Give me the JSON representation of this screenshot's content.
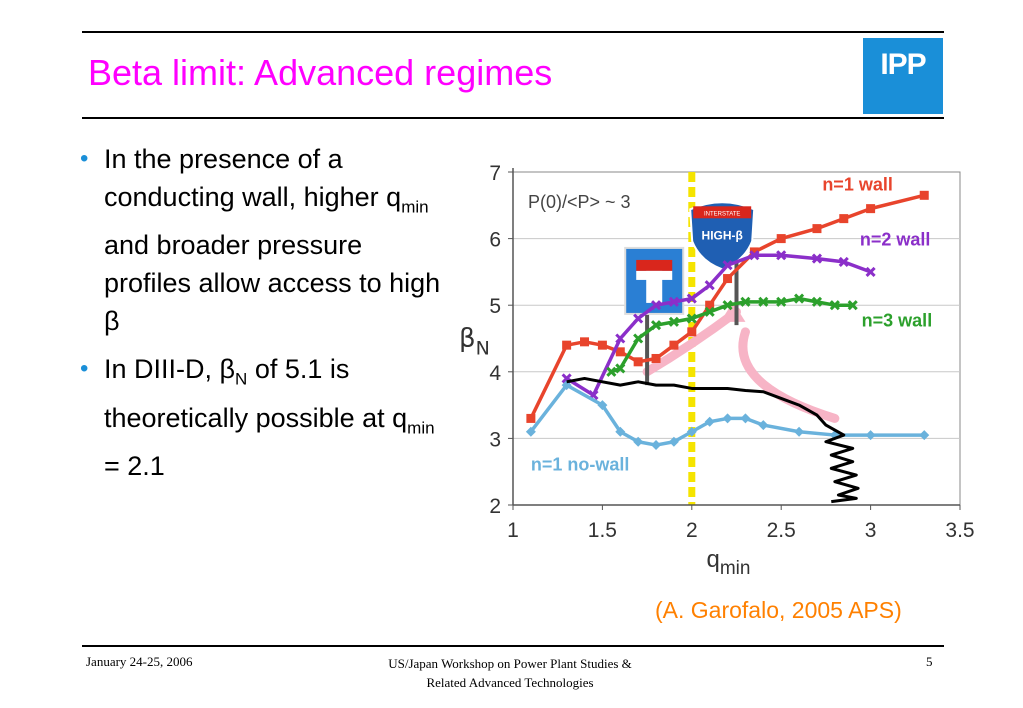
{
  "slide": {
    "title": "Beta limit: Advanced regimes",
    "logo_text": "IPP",
    "bullets": [
      {
        "parts": [
          "In the presence of a conducting wall, higher q",
          "min",
          " and broader pressure profiles allow access to high β"
        ]
      },
      {
        "parts": [
          "In DIII-D, β",
          "N",
          " of 5.1 is theoretically possible at q",
          "min",
          " = 2.1"
        ]
      }
    ],
    "credit": "(A. Garofalo, 2005 APS)",
    "footer": {
      "date": "January 24-25, 2006",
      "event_line1": "US/Japan Workshop on Power Plant Studies &",
      "event_line2": "Related Advanced Technologies",
      "page": "5"
    },
    "colors": {
      "title": "#ff00ff",
      "bullet": "#1a8fd8",
      "credit": "#ff8000",
      "logo_bg": "#1a8fd8"
    }
  },
  "chart_data": {
    "type": "line",
    "xlabel": "q",
    "xlabel_sub": "min",
    "ylabel": "β",
    "ylabel_sub": "N",
    "xlim": [
      1,
      3.5
    ],
    "ylim": [
      2,
      7
    ],
    "xticks": [
      "1",
      "1.5",
      "2",
      "2.5",
      "3",
      "3.5"
    ],
    "yticks": [
      "2",
      "3",
      "4",
      "5",
      "6",
      "7"
    ],
    "grid": "horizontal",
    "annotations": [
      "P(0)/<P> ~ 3"
    ],
    "sign_labels": [
      "INTERSTATE",
      "HIGH-β"
    ],
    "vertical_marker": {
      "x": 2,
      "color": "#f5e400"
    },
    "series": [
      {
        "name": "n=1 wall",
        "color": "#e8442c",
        "marker": "square",
        "x": [
          1.1,
          1.3,
          1.4,
          1.5,
          1.6,
          1.7,
          1.8,
          1.9,
          2.0,
          2.1,
          2.2,
          2.35,
          2.5,
          2.7,
          2.85,
          3.0,
          3.3
        ],
        "y": [
          3.3,
          4.4,
          4.45,
          4.4,
          4.3,
          4.15,
          4.2,
          4.4,
          4.6,
          5.0,
          5.4,
          5.8,
          6.0,
          6.15,
          6.3,
          6.45,
          6.65
        ]
      },
      {
        "name": "n=2 wall",
        "color": "#8b2fc9",
        "marker": "x",
        "x": [
          1.3,
          1.45,
          1.6,
          1.7,
          1.8,
          1.9,
          2.0,
          2.1,
          2.2,
          2.35,
          2.5,
          2.7,
          2.85,
          3.0
        ],
        "y": [
          3.9,
          3.65,
          4.5,
          4.8,
          5.0,
          5.05,
          5.1,
          5.3,
          5.6,
          5.75,
          5.75,
          5.7,
          5.65,
          5.5
        ]
      },
      {
        "name": "n=3 wall",
        "color": "#2ca02c",
        "marker": "x",
        "x": [
          1.55,
          1.6,
          1.7,
          1.8,
          1.9,
          2.0,
          2.1,
          2.2,
          2.3,
          2.4,
          2.5,
          2.6,
          2.7,
          2.8,
          2.9
        ],
        "y": [
          4.0,
          4.05,
          4.5,
          4.7,
          4.75,
          4.8,
          4.9,
          5.0,
          5.05,
          5.05,
          5.05,
          5.1,
          5.05,
          5.0,
          5.0
        ]
      },
      {
        "name": "n=1 no-wall",
        "color": "#6ab2dc",
        "marker": "diamond",
        "x": [
          1.1,
          1.3,
          1.5,
          1.6,
          1.7,
          1.8,
          1.9,
          2.0,
          2.1,
          2.2,
          2.3,
          2.4,
          2.6,
          2.8,
          3.0,
          3.3
        ],
        "y": [
          3.1,
          3.8,
          3.5,
          3.1,
          2.95,
          2.9,
          2.95,
          3.1,
          3.25,
          3.3,
          3.3,
          3.2,
          3.1,
          3.05,
          3.05,
          3.05
        ]
      },
      {
        "name": "",
        "color": "#000000",
        "marker": "none",
        "x": [
          1.3,
          1.4,
          1.5,
          1.6,
          1.7,
          1.8,
          1.9,
          2.0,
          2.1,
          2.2,
          2.3,
          2.4,
          2.5,
          2.6,
          2.7,
          2.75,
          2.85,
          2.75,
          2.9,
          2.78,
          2.9,
          2.78,
          2.92,
          2.8,
          2.93,
          2.82,
          2.92,
          2.78
        ],
        "y": [
          3.85,
          3.9,
          3.85,
          3.8,
          3.85,
          3.8,
          3.8,
          3.75,
          3.75,
          3.75,
          3.72,
          3.7,
          3.6,
          3.5,
          3.35,
          3.2,
          3.05,
          2.95,
          2.85,
          2.75,
          2.65,
          2.55,
          2.45,
          2.35,
          2.25,
          2.15,
          2.1,
          2.05
        ]
      }
    ]
  }
}
